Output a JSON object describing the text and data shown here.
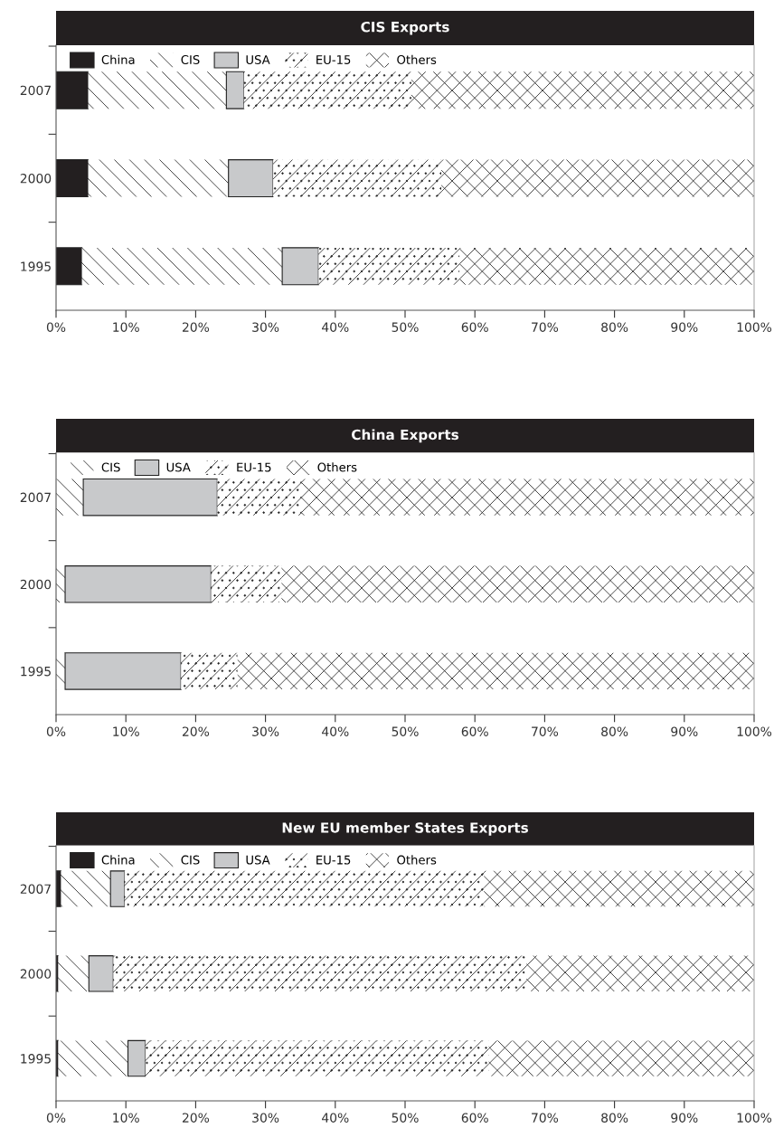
{
  "chart_data": [
    {
      "type": "bar",
      "title": "CIS Exports",
      "orientation": "horizontal",
      "stacked": true,
      "legend": "top left",
      "grid": false,
      "categories": [
        "2007",
        "2000",
        "1995"
      ],
      "xlim": [
        0,
        100
      ],
      "xticks": [
        {
          "value": 0,
          "label": "0%"
        },
        {
          "value": 10,
          "label": "10%"
        },
        {
          "value": 20,
          "label": "20%"
        },
        {
          "value": 30,
          "label": "30%"
        },
        {
          "value": 40,
          "label": "40%"
        },
        {
          "value": 50,
          "label": "50%"
        },
        {
          "value": 60,
          "label": "60%"
        },
        {
          "value": 70,
          "label": "70%"
        },
        {
          "value": 80,
          "label": "80%"
        },
        {
          "value": 90,
          "label": "90%"
        },
        {
          "value": 100,
          "label": "100%"
        }
      ],
      "series": [
        {
          "name": "China",
          "color": "#231f20",
          "values": [
            4.6,
            4.6,
            3.7
          ]
        },
        {
          "name": "CIS",
          "color": "#ffffff",
          "values": [
            19.8,
            20.1,
            28.7
          ]
        },
        {
          "name": "USA",
          "color": "#c8c9cb",
          "values": [
            2.5,
            6.4,
            5.2
          ]
        },
        {
          "name": "EU-15",
          "color": "#ffffff",
          "values": [
            24.0,
            24.1,
            20.2
          ]
        },
        {
          "name": "Others",
          "color": "#ffffff",
          "values": [
            49.1,
            44.8,
            42.2
          ]
        }
      ]
    },
    {
      "type": "bar",
      "title": "China Exports",
      "orientation": "horizontal",
      "stacked": true,
      "legend": "top left",
      "grid": false,
      "categories": [
        "2007",
        "2000",
        "1995"
      ],
      "xlim": [
        0,
        100
      ],
      "xticks": [
        {
          "value": 0,
          "label": "0%"
        },
        {
          "value": 10,
          "label": "10%"
        },
        {
          "value": 20,
          "label": "20%"
        },
        {
          "value": 30,
          "label": "30%"
        },
        {
          "value": 40,
          "label": "40%"
        },
        {
          "value": 50,
          "label": "50%"
        },
        {
          "value": 60,
          "label": "60%"
        },
        {
          "value": 70,
          "label": "70%"
        },
        {
          "value": 80,
          "label": "80%"
        },
        {
          "value": 90,
          "label": "90%"
        },
        {
          "value": 100,
          "label": "100%"
        }
      ],
      "series": [
        {
          "name": "CIS",
          "color": "#ffffff",
          "values": [
            3.9,
            1.3,
            1.3
          ]
        },
        {
          "name": "USA",
          "color": "#c8c9cb",
          "values": [
            19.2,
            20.9,
            16.6
          ]
        },
        {
          "name": "EU-15",
          "color": "#ffffff",
          "values": [
            12.1,
            10.1,
            8.1
          ]
        },
        {
          "name": "Others",
          "color": "#ffffff",
          "values": [
            64.8,
            67.7,
            74.0
          ]
        }
      ]
    },
    {
      "type": "bar",
      "title": "New EU member States Exports",
      "orientation": "horizontal",
      "stacked": true,
      "legend": "top left",
      "grid": false,
      "categories": [
        "2007",
        "2000",
        "1995"
      ],
      "xlim": [
        0,
        100
      ],
      "xticks": [
        {
          "value": 0,
          "label": "0%"
        },
        {
          "value": 10,
          "label": "10%"
        },
        {
          "value": 20,
          "label": "20%"
        },
        {
          "value": 30,
          "label": "30%"
        },
        {
          "value": 40,
          "label": "40%"
        },
        {
          "value": 50,
          "label": "50%"
        },
        {
          "value": 60,
          "label": "60%"
        },
        {
          "value": 70,
          "label": "70%"
        },
        {
          "value": 80,
          "label": "80%"
        },
        {
          "value": 90,
          "label": "90%"
        },
        {
          "value": 100,
          "label": "100%"
        }
      ],
      "series": [
        {
          "name": "China",
          "color": "#231f20",
          "values": [
            0.7,
            0.3,
            0.3
          ]
        },
        {
          "name": "CIS",
          "color": "#ffffff",
          "values": [
            7.1,
            4.4,
            10.0
          ]
        },
        {
          "name": "USA",
          "color": "#c8c9cb",
          "values": [
            2.0,
            3.5,
            2.5
          ]
        },
        {
          "name": "EU-15",
          "color": "#ffffff",
          "values": [
            51.5,
            59.2,
            49.2
          ]
        },
        {
          "name": "Others",
          "color": "#ffffff",
          "values": [
            38.7,
            32.6,
            38.0
          ]
        }
      ]
    }
  ]
}
